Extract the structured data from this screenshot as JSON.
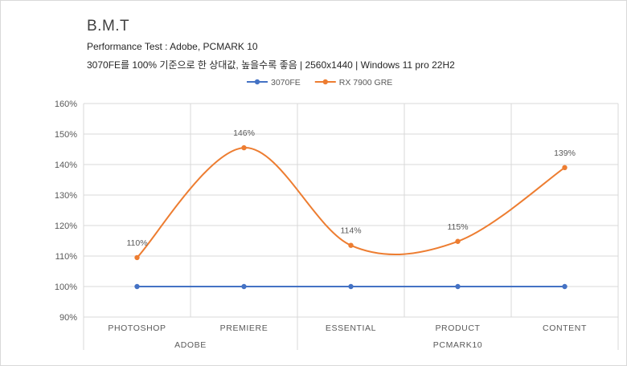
{
  "chart_data": {
    "type": "line",
    "title": "B.M.T",
    "subtitle": "Performance Test : Adobe, PCMARK 10",
    "subtitle2": "3070FE를 100% 기준으로 한 상대값, 높을수록 좋음 | 2560x1440 | Windows 11 pro 22H2",
    "categories": [
      "PHOTOSHOP",
      "PREMIERE",
      "ESSENTIAL",
      "PRODUCT",
      "CONTENT"
    ],
    "groups": [
      {
        "label": "ADOBE",
        "span": 2
      },
      {
        "label": "PCMARK10",
        "span": 3
      }
    ],
    "series": [
      {
        "name": "3070FE",
        "color": "#4472c4",
        "values": [
          100,
          100,
          100,
          100,
          100
        ],
        "labels": [
          "",
          "",
          "",
          "",
          ""
        ],
        "smooth": false
      },
      {
        "name": "RX 7900 GRE",
        "color": "#ed7d31",
        "values": [
          109.5,
          145.5,
          113.5,
          114.8,
          139
        ],
        "labels": [
          "110%",
          "146%",
          "114%",
          "115%",
          "139%"
        ],
        "smooth": true
      }
    ],
    "yticks": [
      "90%",
      "100%",
      "110%",
      "120%",
      "130%",
      "140%",
      "150%",
      "160%"
    ],
    "ylim": [
      90,
      160
    ],
    "legend_position": "top-center",
    "grid": true
  }
}
